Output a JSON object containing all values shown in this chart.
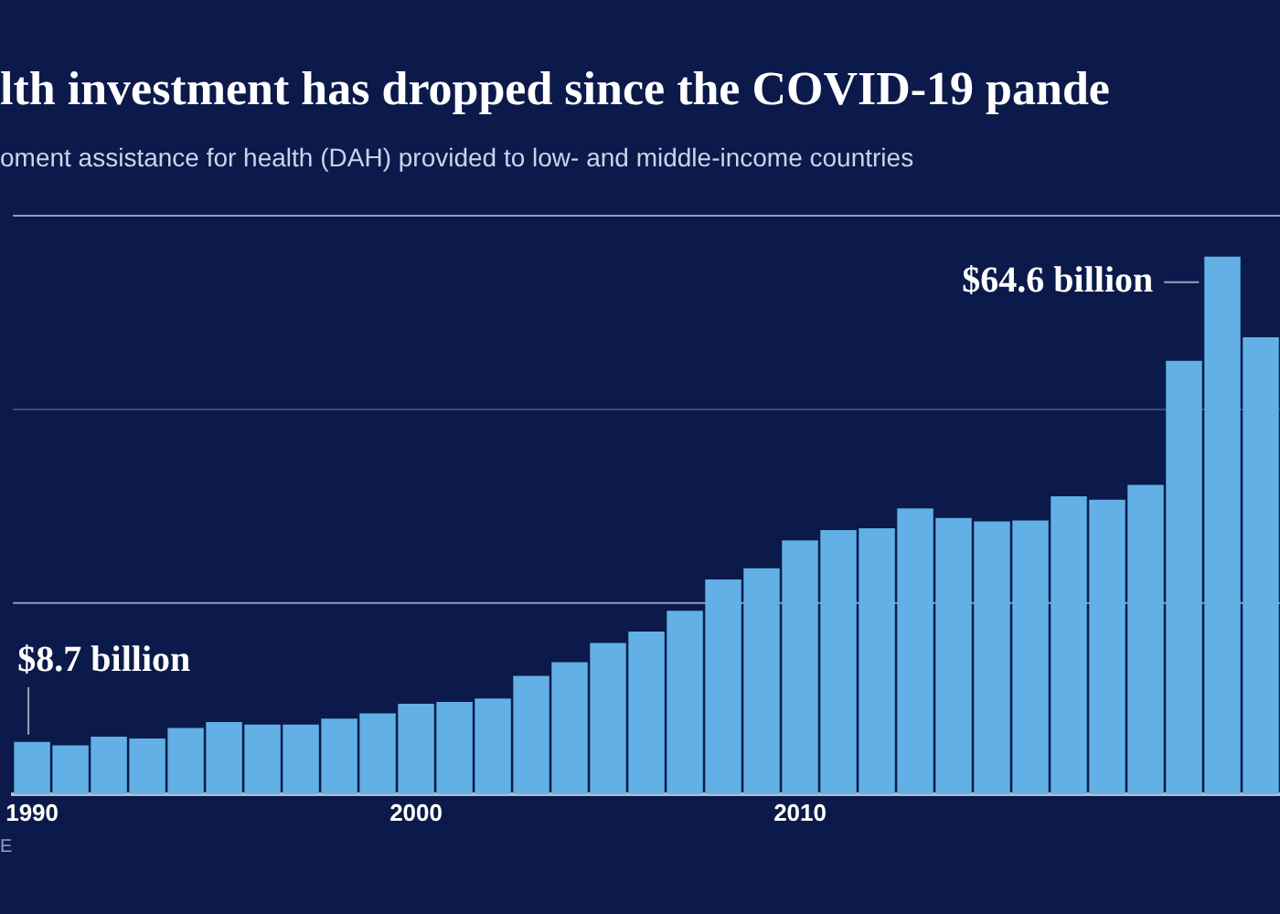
{
  "chart_data": {
    "type": "bar",
    "title": "lth investment has dropped since the COVID-19 pande",
    "subtitle": "oment assistance for health (DAH) provided to low- and middle-income countries",
    "categories": [
      "1990",
      null,
      null,
      null,
      null,
      null,
      null,
      null,
      null,
      null,
      "2000",
      null,
      null,
      null,
      null,
      null,
      null,
      null,
      null,
      null,
      "2010",
      null,
      null,
      null,
      null,
      null,
      null,
      null,
      null,
      null,
      null,
      null,
      null
    ],
    "values": [
      8.7,
      8.3,
      9.3,
      9.1,
      10.3,
      11.0,
      10.7,
      10.7,
      11.4,
      12.0,
      13.1,
      13.3,
      13.7,
      16.3,
      17.9,
      20.1,
      21.4,
      23.8,
      27.4,
      28.7,
      31.9,
      33.1,
      33.3,
      35.6,
      34.5,
      34.1,
      34.2,
      37.0,
      36.6,
      38.3,
      52.6,
      64.6,
      55.3
    ],
    "value_labels": [
      "$8.7 billion",
      null,
      null,
      null,
      null,
      null,
      null,
      null,
      null,
      null,
      null,
      null,
      null,
      null,
      null,
      null,
      null,
      null,
      null,
      null,
      null,
      null,
      null,
      null,
      null,
      null,
      null,
      null,
      null,
      null,
      null,
      "$64.6 billion",
      null
    ],
    "color": "#62b0e6",
    "ylim": [
      2.7,
      69.3
    ],
    "tick_labels": "x",
    "legend": false,
    "ref_lines": [
      {
        "axis": "y",
        "value": 24.7,
        "color": "#8d9bc0"
      },
      {
        "axis": "y",
        "value": 47.0,
        "color": "#3a4a7a"
      },
      {
        "axis": "y",
        "value": 69.3,
        "color": "#8d9bc0"
      }
    ],
    "annotations": [
      "E"
    ]
  }
}
